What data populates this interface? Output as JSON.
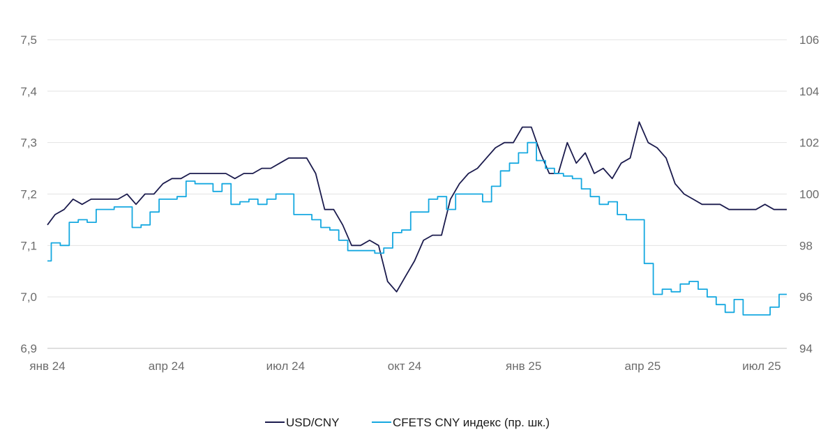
{
  "chart_data": {
    "type": "line",
    "title": "",
    "grid": true,
    "legend_position": "bottom-center",
    "x_ticks": [
      "янв 24",
      "апр 24",
      "июл 24",
      "окт 24",
      "янв 25",
      "апр 25",
      "июл 25"
    ],
    "x_range": [
      "2024-01-02",
      "2025-07-31"
    ],
    "y_left": {
      "lim": [
        6.9,
        7.5
      ],
      "ticks": [
        "6,9",
        "7,0",
        "7,1",
        "7,2",
        "7,3",
        "7,4",
        "7,5"
      ]
    },
    "y_right": {
      "lim": [
        94,
        106
      ],
      "ticks": [
        "94",
        "96",
        "98",
        "100",
        "102",
        "104",
        "106"
      ]
    },
    "series": [
      {
        "name": "USD/CNY",
        "axis": "left",
        "color": "#1b1b4d",
        "points": [
          [
            "2024-01-02",
            7.14
          ],
          [
            "2024-01-08",
            7.16
          ],
          [
            "2024-01-15",
            7.17
          ],
          [
            "2024-01-22",
            7.19
          ],
          [
            "2024-01-29",
            7.18
          ],
          [
            "2024-02-05",
            7.19
          ],
          [
            "2024-02-12",
            7.19
          ],
          [
            "2024-02-19",
            7.19
          ],
          [
            "2024-02-26",
            7.19
          ],
          [
            "2024-03-04",
            7.2
          ],
          [
            "2024-03-11",
            7.18
          ],
          [
            "2024-03-18",
            7.2
          ],
          [
            "2024-03-25",
            7.2
          ],
          [
            "2024-04-01",
            7.22
          ],
          [
            "2024-04-08",
            7.23
          ],
          [
            "2024-04-15",
            7.23
          ],
          [
            "2024-04-22",
            7.24
          ],
          [
            "2024-04-29",
            7.24
          ],
          [
            "2024-05-06",
            7.24
          ],
          [
            "2024-05-13",
            7.24
          ],
          [
            "2024-05-20",
            7.24
          ],
          [
            "2024-05-27",
            7.23
          ],
          [
            "2024-06-03",
            7.24
          ],
          [
            "2024-06-10",
            7.24
          ],
          [
            "2024-06-17",
            7.25
          ],
          [
            "2024-06-24",
            7.25
          ],
          [
            "2024-07-01",
            7.26
          ],
          [
            "2024-07-08",
            7.27
          ],
          [
            "2024-07-15",
            7.27
          ],
          [
            "2024-07-22",
            7.27
          ],
          [
            "2024-07-29",
            7.24
          ],
          [
            "2024-08-05",
            7.17
          ],
          [
            "2024-08-12",
            7.17
          ],
          [
            "2024-08-19",
            7.14
          ],
          [
            "2024-08-26",
            7.1
          ],
          [
            "2024-09-02",
            7.1
          ],
          [
            "2024-09-09",
            7.11
          ],
          [
            "2024-09-16",
            7.1
          ],
          [
            "2024-09-23",
            7.03
          ],
          [
            "2024-09-30",
            7.01
          ],
          [
            "2024-10-07",
            7.04
          ],
          [
            "2024-10-14",
            7.07
          ],
          [
            "2024-10-21",
            7.11
          ],
          [
            "2024-10-28",
            7.12
          ],
          [
            "2024-11-04",
            7.12
          ],
          [
            "2024-11-11",
            7.19
          ],
          [
            "2024-11-18",
            7.22
          ],
          [
            "2024-11-25",
            7.24
          ],
          [
            "2024-12-02",
            7.25
          ],
          [
            "2024-12-09",
            7.27
          ],
          [
            "2024-12-16",
            7.29
          ],
          [
            "2024-12-23",
            7.3
          ],
          [
            "2024-12-30",
            7.3
          ],
          [
            "2025-01-06",
            7.33
          ],
          [
            "2025-01-13",
            7.33
          ],
          [
            "2025-01-20",
            7.28
          ],
          [
            "2025-01-27",
            7.24
          ],
          [
            "2025-02-03",
            7.24
          ],
          [
            "2025-02-10",
            7.3
          ],
          [
            "2025-02-17",
            7.26
          ],
          [
            "2025-02-24",
            7.28
          ],
          [
            "2025-03-03",
            7.24
          ],
          [
            "2025-03-10",
            7.25
          ],
          [
            "2025-03-17",
            7.23
          ],
          [
            "2025-03-24",
            7.26
          ],
          [
            "2025-03-31",
            7.27
          ],
          [
            "2025-04-07",
            7.34
          ],
          [
            "2025-04-14",
            7.3
          ],
          [
            "2025-04-21",
            7.29
          ],
          [
            "2025-04-28",
            7.27
          ],
          [
            "2025-05-05",
            7.22
          ],
          [
            "2025-05-12",
            7.2
          ],
          [
            "2025-05-19",
            7.19
          ],
          [
            "2025-05-26",
            7.18
          ],
          [
            "2025-06-02",
            7.18
          ],
          [
            "2025-06-09",
            7.18
          ],
          [
            "2025-06-16",
            7.17
          ],
          [
            "2025-06-23",
            7.17
          ],
          [
            "2025-06-30",
            7.17
          ],
          [
            "2025-07-07",
            7.17
          ],
          [
            "2025-07-14",
            7.18
          ],
          [
            "2025-07-21",
            7.17
          ],
          [
            "2025-07-31",
            7.17
          ]
        ]
      },
      {
        "name": "CFETS CNY индекс (пр. шк.)",
        "axis": "right",
        "color": "#15a8e0",
        "points": [
          [
            "2024-01-02",
            97.4
          ],
          [
            "2024-01-05",
            98.1
          ],
          [
            "2024-01-12",
            98.0
          ],
          [
            "2024-01-19",
            98.9
          ],
          [
            "2024-01-26",
            99.0
          ],
          [
            "2024-02-02",
            98.9
          ],
          [
            "2024-02-09",
            99.4
          ],
          [
            "2024-02-16",
            99.4
          ],
          [
            "2024-02-23",
            99.5
          ],
          [
            "2024-03-01",
            99.5
          ],
          [
            "2024-03-08",
            98.7
          ],
          [
            "2024-03-15",
            98.8
          ],
          [
            "2024-03-22",
            99.3
          ],
          [
            "2024-03-29",
            99.8
          ],
          [
            "2024-04-05",
            99.8
          ],
          [
            "2024-04-12",
            99.9
          ],
          [
            "2024-04-19",
            100.5
          ],
          [
            "2024-04-26",
            100.4
          ],
          [
            "2024-05-03",
            100.4
          ],
          [
            "2024-05-10",
            100.1
          ],
          [
            "2024-05-17",
            100.4
          ],
          [
            "2024-05-24",
            99.6
          ],
          [
            "2024-05-31",
            99.7
          ],
          [
            "2024-06-07",
            99.8
          ],
          [
            "2024-06-14",
            99.6
          ],
          [
            "2024-06-21",
            99.8
          ],
          [
            "2024-06-28",
            100.0
          ],
          [
            "2024-07-05",
            100.0
          ],
          [
            "2024-07-12",
            99.2
          ],
          [
            "2024-07-19",
            99.2
          ],
          [
            "2024-07-26",
            99.0
          ],
          [
            "2024-08-02",
            98.7
          ],
          [
            "2024-08-09",
            98.6
          ],
          [
            "2024-08-16",
            98.2
          ],
          [
            "2024-08-23",
            97.8
          ],
          [
            "2024-08-30",
            97.8
          ],
          [
            "2024-09-06",
            97.8
          ],
          [
            "2024-09-13",
            97.7
          ],
          [
            "2024-09-20",
            97.9
          ],
          [
            "2024-09-27",
            98.5
          ],
          [
            "2024-10-04",
            98.6
          ],
          [
            "2024-10-11",
            99.3
          ],
          [
            "2024-10-18",
            99.3
          ],
          [
            "2024-10-25",
            99.8
          ],
          [
            "2024-11-01",
            99.9
          ],
          [
            "2024-11-08",
            99.4
          ],
          [
            "2024-11-15",
            100.0
          ],
          [
            "2024-11-22",
            100.0
          ],
          [
            "2024-11-29",
            100.0
          ],
          [
            "2024-12-06",
            99.7
          ],
          [
            "2024-12-13",
            100.3
          ],
          [
            "2024-12-20",
            100.9
          ],
          [
            "2024-12-27",
            101.2
          ],
          [
            "2025-01-03",
            101.6
          ],
          [
            "2025-01-10",
            102.0
          ],
          [
            "2025-01-17",
            101.3
          ],
          [
            "2025-01-24",
            101.0
          ],
          [
            "2025-01-31",
            100.8
          ],
          [
            "2025-02-07",
            100.7
          ],
          [
            "2025-02-14",
            100.6
          ],
          [
            "2025-02-21",
            100.2
          ],
          [
            "2025-02-28",
            99.9
          ],
          [
            "2025-03-07",
            99.6
          ],
          [
            "2025-03-14",
            99.7
          ],
          [
            "2025-03-21",
            99.2
          ],
          [
            "2025-03-28",
            99.0
          ],
          [
            "2025-04-04",
            99.0
          ],
          [
            "2025-04-11",
            97.3
          ],
          [
            "2025-04-18",
            96.1
          ],
          [
            "2025-04-25",
            96.3
          ],
          [
            "2025-05-02",
            96.2
          ],
          [
            "2025-05-09",
            96.5
          ],
          [
            "2025-05-16",
            96.6
          ],
          [
            "2025-05-23",
            96.3
          ],
          [
            "2025-05-30",
            96.0
          ],
          [
            "2025-06-06",
            95.7
          ],
          [
            "2025-06-13",
            95.4
          ],
          [
            "2025-06-20",
            95.9
          ],
          [
            "2025-06-27",
            95.3
          ],
          [
            "2025-07-04",
            95.3
          ],
          [
            "2025-07-11",
            95.3
          ],
          [
            "2025-07-18",
            95.6
          ],
          [
            "2025-07-25",
            96.1
          ],
          [
            "2025-07-31",
            96.1
          ]
        ]
      }
    ]
  }
}
